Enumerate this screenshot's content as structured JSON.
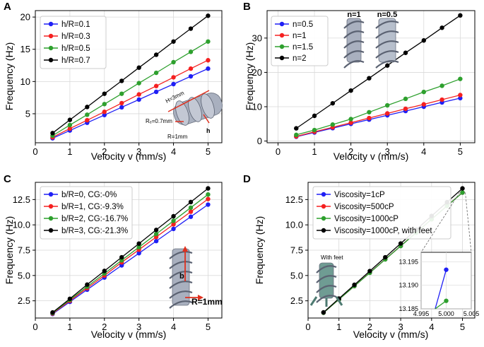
{
  "colors": {
    "blue": "#1f1ff5",
    "red": "#f52020",
    "green": "#2ea02e",
    "black": "#000000",
    "grid": "#d9d9d9",
    "render_gray": "#a9b0bf",
    "render_teal": "#6f9c93",
    "arrow_red": "#e0301e"
  },
  "chart_data": [
    {
      "type": "line",
      "panel_label": "A",
      "xlabel": "Velocity v (mm/s)",
      "ylabel": "Frequency (Hz)",
      "xlim": [
        0,
        5.4
      ],
      "ylim": [
        0.5,
        21
      ],
      "xticks": [
        0,
        1,
        2,
        3,
        4,
        5
      ],
      "yticks": [
        5,
        10,
        15,
        20
      ],
      "grid": true,
      "legend_position": "top-left",
      "x": [
        0.5,
        1.0,
        1.5,
        2.0,
        2.5,
        3.0,
        3.5,
        4.0,
        4.5,
        5.0
      ],
      "series": [
        {
          "name": "h/R=0.1",
          "color": "blue",
          "values": [
            1.2,
            2.4,
            3.6,
            4.8,
            6.0,
            7.2,
            8.4,
            9.6,
            10.8,
            12.0
          ]
        },
        {
          "name": "h/R=0.3",
          "color": "red",
          "values": [
            1.35,
            2.7,
            4.0,
            5.3,
            6.65,
            8.0,
            9.3,
            10.65,
            12.0,
            13.3
          ]
        },
        {
          "name": "h/R=0.5",
          "color": "green",
          "values": [
            1.6,
            3.25,
            4.85,
            6.5,
            8.1,
            9.75,
            11.35,
            13.0,
            14.6,
            16.2
          ]
        },
        {
          "name": "h/R=0.7",
          "color": "black",
          "values": [
            2.0,
            4.05,
            6.05,
            8.1,
            10.1,
            12.15,
            14.15,
            16.2,
            18.2,
            20.2
          ]
        }
      ],
      "inset_labels": [
        "H=3mm",
        "Rₑ=0.7mm",
        "R=1mm",
        "h"
      ]
    },
    {
      "type": "line",
      "panel_label": "B",
      "xlabel": "Velocity v (mm/s)",
      "ylabel": "Frequency (Hz)",
      "xlim": [
        -0.3,
        5.4
      ],
      "ylim": [
        -0.5,
        38
      ],
      "xticks": [
        0,
        1,
        2,
        3,
        4,
        5
      ],
      "yticks": [
        0,
        10,
        20,
        30
      ],
      "grid": true,
      "legend_position": "top-left",
      "x": [
        0.5,
        1.0,
        1.5,
        2.0,
        2.5,
        3.0,
        3.5,
        4.0,
        4.5,
        5.0
      ],
      "series": [
        {
          "name": "n=0.5",
          "color": "blue",
          "values": [
            1.25,
            2.5,
            3.75,
            5.0,
            6.25,
            7.5,
            8.75,
            10.0,
            11.25,
            12.5
          ]
        },
        {
          "name": "n=1",
          "color": "red",
          "values": [
            1.35,
            2.7,
            4.0,
            5.35,
            6.7,
            8.05,
            9.4,
            10.7,
            12.05,
            13.4
          ]
        },
        {
          "name": "n=1.5",
          "color": "green",
          "values": [
            1.8,
            3.2,
            4.8,
            6.4,
            8.4,
            10.4,
            12.3,
            14.3,
            16.1,
            18.1
          ]
        },
        {
          "name": "n=2",
          "color": "black",
          "values": [
            3.7,
            7.35,
            11.0,
            14.7,
            18.3,
            22.0,
            25.7,
            29.3,
            33.0,
            36.6
          ]
        }
      ],
      "inset_labels": [
        "n=1",
        "n=0.5"
      ]
    },
    {
      "type": "line",
      "panel_label": "C",
      "xlabel": "Velocity v (mm/s)",
      "ylabel": "Frequency (Hz)",
      "xlim": [
        0,
        5.4
      ],
      "ylim": [
        0.8,
        14.2
      ],
      "xticks": [
        0,
        1,
        2,
        3,
        4,
        5
      ],
      "yticks": [
        2.5,
        5.0,
        7.5,
        10.0,
        12.5
      ],
      "ytick_labels": [
        "2.5",
        "5.0",
        "7.5",
        "10.0",
        "12.5"
      ],
      "grid": true,
      "legend_position": "top-left",
      "x": [
        0.5,
        1.0,
        1.5,
        2.0,
        2.5,
        3.0,
        3.5,
        4.0,
        4.5,
        5.0
      ],
      "series": [
        {
          "name": "b/R=0, CG:-0%",
          "color": "blue",
          "values": [
            1.2,
            2.4,
            3.6,
            4.8,
            6.0,
            7.2,
            8.4,
            9.6,
            10.8,
            12.0
          ]
        },
        {
          "name": "b/R=1, CG:-9.3%",
          "color": "red",
          "values": [
            1.25,
            2.5,
            3.75,
            5.0,
            6.3,
            7.55,
            8.8,
            10.05,
            11.3,
            12.55
          ]
        },
        {
          "name": "b/R=2, CG:-16.7%",
          "color": "green",
          "values": [
            1.3,
            2.6,
            3.9,
            5.2,
            6.5,
            7.8,
            9.1,
            10.4,
            11.7,
            13.0
          ]
        },
        {
          "name": "b/R=3, CG:-21.3%",
          "color": "black",
          "values": [
            1.35,
            2.7,
            4.1,
            5.45,
            6.8,
            8.15,
            9.5,
            10.85,
            12.25,
            13.6
          ]
        }
      ],
      "inset_labels": [
        "b",
        "R=1mm"
      ]
    },
    {
      "type": "line",
      "panel_label": "D",
      "xlabel": "Velocity v (mm/s)",
      "ylabel": "Frequency (Hz)",
      "xlim": [
        0,
        5.4
      ],
      "ylim": [
        0.8,
        14.2
      ],
      "xticks": [
        0,
        1,
        2,
        3,
        4,
        5
      ],
      "yticks": [
        2.5,
        5.0,
        7.5,
        10.0,
        12.5
      ],
      "ytick_labels": [
        "2.5",
        "5.0",
        "7.5",
        "10.0",
        "12.5"
      ],
      "grid": true,
      "legend_position": "top-left",
      "x": [
        0.5,
        1.0,
        1.5,
        2.0,
        2.5,
        3.0,
        3.5,
        4.0,
        4.5,
        5.0
      ],
      "series": [
        {
          "name": "Viscosity=1cP",
          "color": "blue",
          "values": [
            1.32,
            2.64,
            3.96,
            5.28,
            6.6,
            7.92,
            9.24,
            10.56,
            11.88,
            13.19
          ]
        },
        {
          "name": "Viscosity=500cP",
          "color": "red",
          "values": [
            1.32,
            2.64,
            3.96,
            5.28,
            6.6,
            7.92,
            9.24,
            10.56,
            11.88,
            13.19
          ]
        },
        {
          "name": "Viscosity=1000cP",
          "color": "green",
          "values": [
            1.32,
            2.64,
            3.96,
            5.27,
            6.59,
            7.91,
            9.23,
            10.55,
            11.87,
            13.19
          ]
        },
        {
          "name": "Viscosity=1000cP, with feet",
          "color": "black",
          "values": [
            1.36,
            2.72,
            4.08,
            5.44,
            6.8,
            8.16,
            9.52,
            10.88,
            12.24,
            13.6
          ]
        }
      ],
      "inset_labels": [
        "With feet"
      ],
      "zoom_inset": {
        "xlim": [
          4.995,
          5.005
        ],
        "ylim": [
          13.185,
          13.197
        ],
        "xticks": [
          4.995,
          5.0,
          5.005
        ],
        "xtick_labels": [
          "4.995",
          "5.000",
          "5.005"
        ],
        "yticks": [
          13.185,
          13.19,
          13.195
        ],
        "ytick_labels": [
          "13.185",
          "13.190",
          "13.195"
        ],
        "points": [
          {
            "series": "Viscosity=1cP",
            "color": "blue",
            "x": 5.0,
            "y": 13.1933
          },
          {
            "series": "Viscosity=1000cP",
            "color": "green",
            "x": 5.0,
            "y": 13.1867
          }
        ]
      }
    }
  ]
}
